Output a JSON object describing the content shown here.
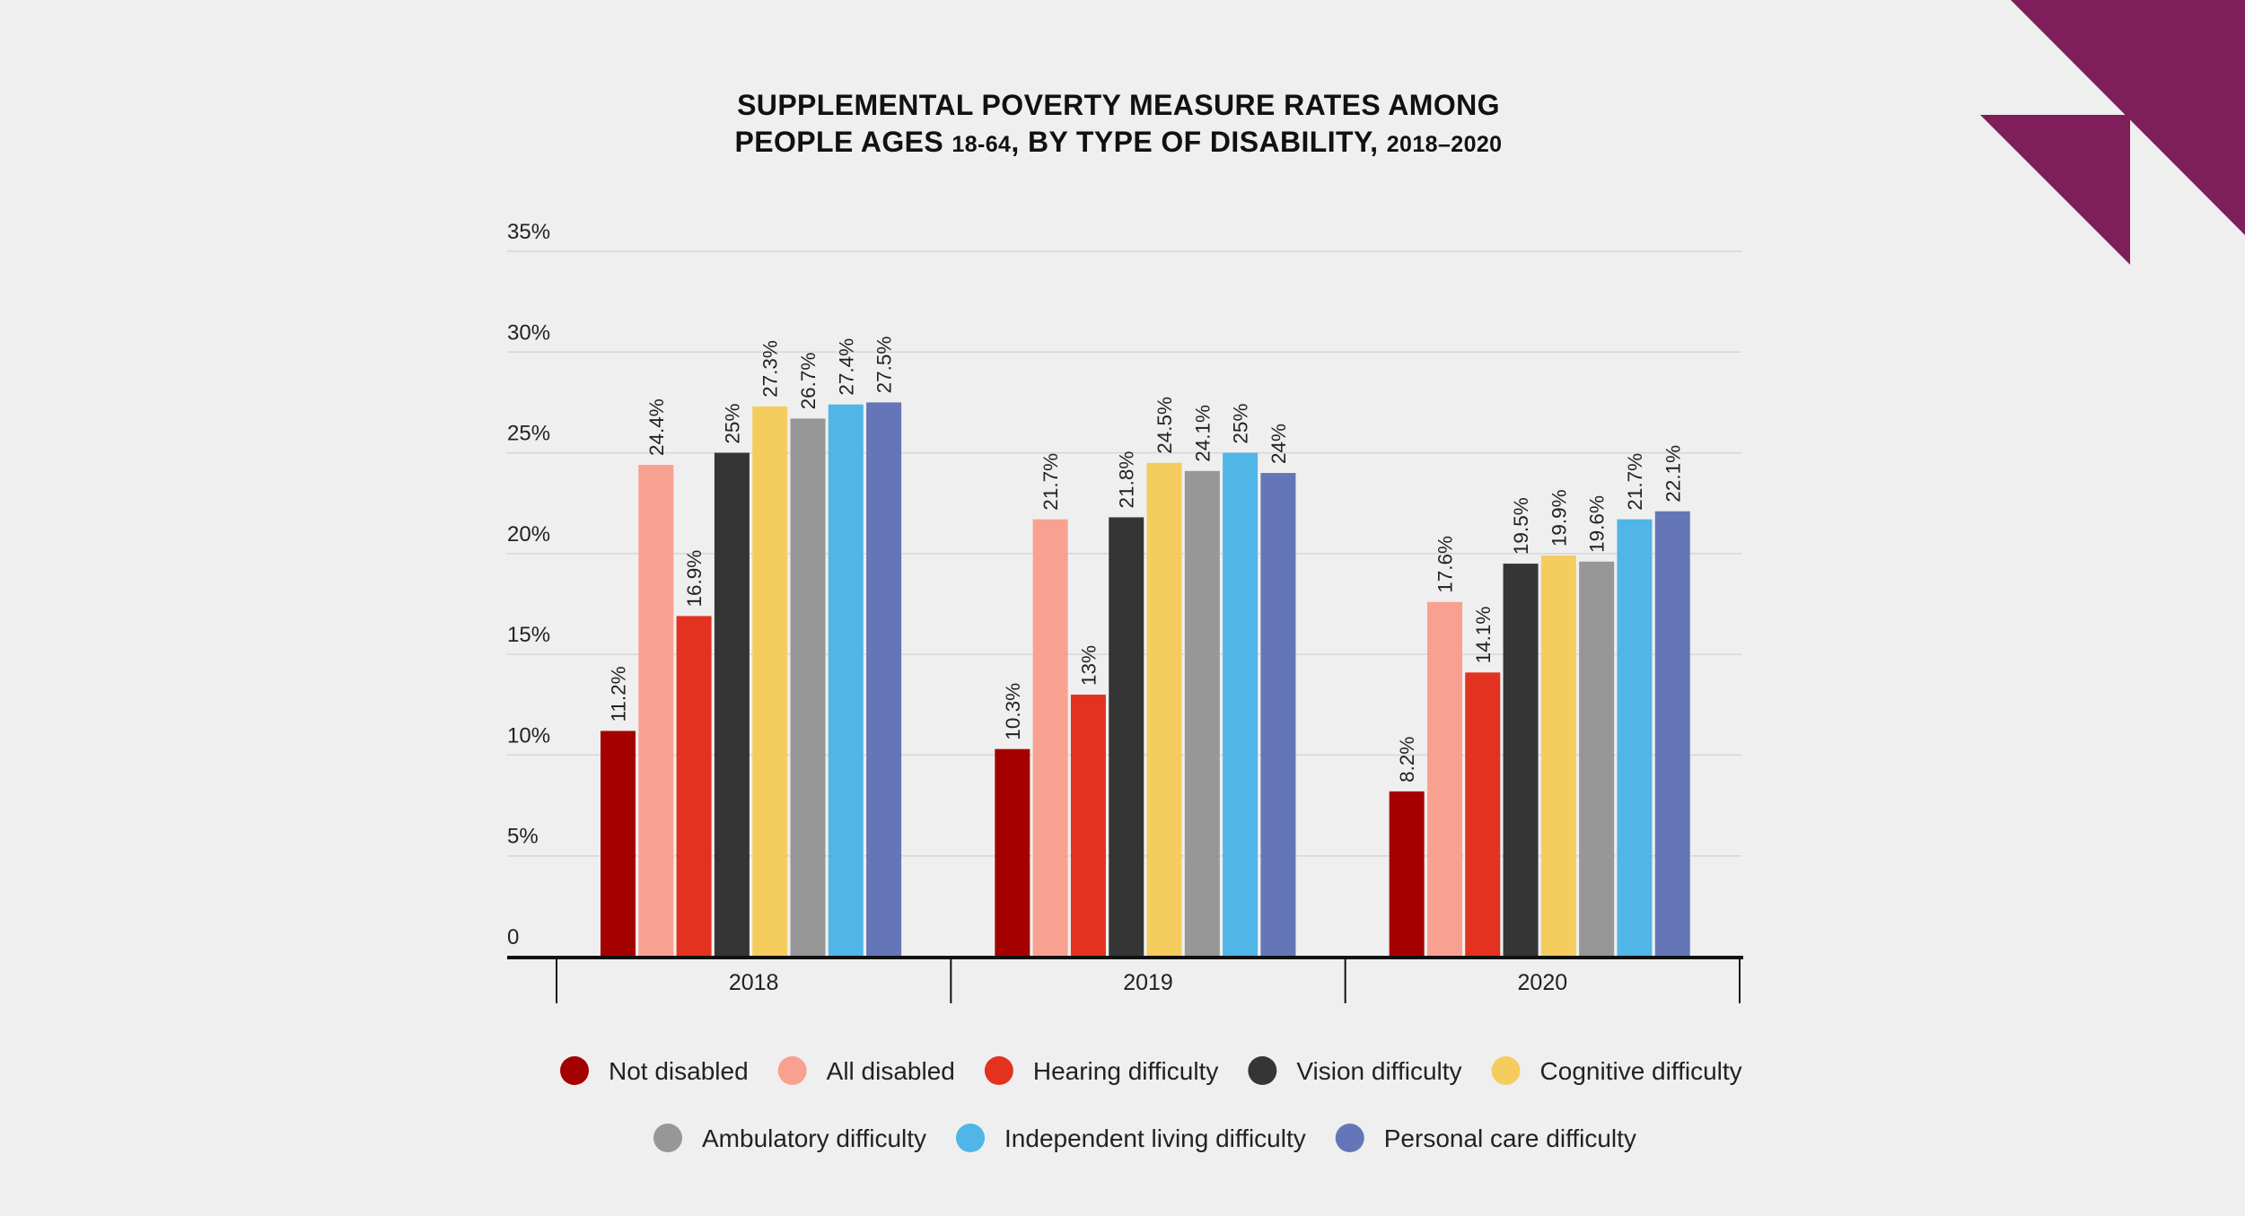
{
  "chart_data": {
    "type": "bar",
    "title_line1": "SUPPLEMENTAL POVERTY MEASURE RATES AMONG",
    "title_line2_main": "PEOPLE AGES",
    "title_line2_ages": "18-64",
    "title_line2_mid": ", BY TYPE OF DISABILITY,",
    "title_line2_years": "2018–2020",
    "categories": [
      "2018",
      "2019",
      "2020"
    ],
    "ylim": [
      0,
      35
    ],
    "y_ticks": [
      0,
      5,
      10,
      15,
      20,
      25,
      30,
      35
    ],
    "y_tick_labels": [
      "0",
      "5%",
      "10%",
      "15%",
      "20%",
      "25%",
      "30%",
      "35%"
    ],
    "grid": true,
    "legend_placement": "bottom",
    "series": [
      {
        "name": "Not disabled",
        "color": "#a50000",
        "values": [
          11.2,
          10.3,
          8.2
        ],
        "labels": [
          "11.2%",
          "10.3%",
          "8.2%"
        ]
      },
      {
        "name": "All disabled",
        "color": "#f9a191",
        "values": [
          24.4,
          21.7,
          17.6
        ],
        "labels": [
          "24.4%",
          "21.7%",
          "17.6%"
        ]
      },
      {
        "name": "Hearing difficulty",
        "color": "#e3321f",
        "values": [
          16.9,
          13,
          14.1
        ],
        "labels": [
          "16.9%",
          "13%",
          "14.1%"
        ]
      },
      {
        "name": "Vision difficulty",
        "color": "#353535",
        "values": [
          25,
          21.8,
          19.5
        ],
        "labels": [
          "25%",
          "21.8%",
          "19.5%"
        ]
      },
      {
        "name": "Cognitive difficulty",
        "color": "#f4cd5e",
        "values": [
          27.3,
          24.5,
          19.9
        ],
        "labels": [
          "27.3%",
          "24.5%",
          "19.9%"
        ]
      },
      {
        "name": "Ambulatory difficulty",
        "color": "#979797",
        "values": [
          26.7,
          24.1,
          19.6
        ],
        "labels": [
          "26.7%",
          "24.1%",
          "19.6%"
        ]
      },
      {
        "name": "Independent living difficulty",
        "color": "#4fb6e7",
        "values": [
          27.4,
          25,
          21.7
        ],
        "labels": [
          "27.4%",
          "25%",
          "21.7%"
        ]
      },
      {
        "name": "Personal care difficulty",
        "color": "#6576b8",
        "values": [
          27.5,
          24,
          22.1
        ],
        "labels": [
          "27.5%",
          "24%",
          "22.1%"
        ]
      }
    ]
  },
  "decoration": {
    "accent_color": "#7e1f5b"
  }
}
